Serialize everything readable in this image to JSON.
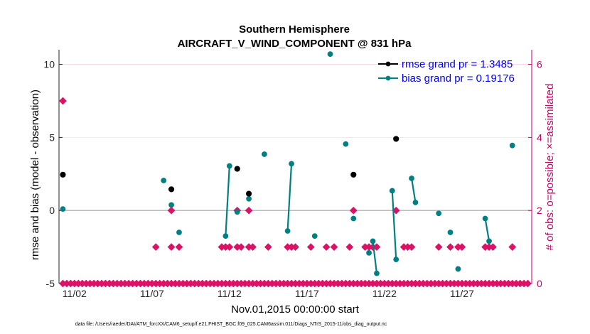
{
  "chart_data": {
    "type": "scatter",
    "title": "Southern Hemisphere",
    "subtitle": "AIRCRAFT_V_WIND_COMPONENT @ 831 hPa",
    "xlabel": "Nov.01,2015 00:00:00 start",
    "ylabel": "rmse and bias (model - observation)",
    "y2label": "# of obs: o=possible; ×=assimilated",
    "footer": "data file: /Users/raeder/DAI/ATM_forcXX/CAM6_setup/f.e21.FHIST_BGC.f09_025.CAM6assim.011/Diags_NTrS_2015-11/obs_diag_output.nc",
    "xlim": [
      0.5,
      31.0
    ],
    "ylim": [
      -5,
      11
    ],
    "y2lim": [
      0,
      6.4
    ],
    "x_ticks": [
      1.5,
      6.5,
      11.5,
      16.5,
      21.5,
      26.5
    ],
    "x_tick_labels": [
      "11/02",
      "11/07",
      "11/12",
      "11/17",
      "11/22",
      "11/27"
    ],
    "y_ticks": [
      -5,
      0,
      5,
      10
    ],
    "y_tick_labels": [
      "-5",
      "0",
      "5",
      "10"
    ],
    "y2_ticks": [
      0,
      2,
      4,
      6
    ],
    "y2_tick_labels": [
      "0",
      "2",
      "4",
      "6"
    ],
    "colors": {
      "rmse": "#000000",
      "bias": "#008080",
      "obs": "#dd1166",
      "zero_line": "#b3b3b3",
      "axis": "#262626",
      "right_axis": "#cc0066",
      "legend_text": "#0000ff"
    },
    "legend": [
      "rmse grand pr = 1.3485",
      "bias grand pr = 0.19176"
    ],
    "rmse": [
      {
        "x": 0.75,
        "y": 2.45
      },
      {
        "x": 7.75,
        "y": 1.45
      },
      {
        "x": 12.0,
        "y": 2.85
      },
      {
        "x": 12.75,
        "y": 1.15
      },
      {
        "x": 19.5,
        "y": 2.45
      },
      {
        "x": 22.25,
        "y": 4.9
      }
    ],
    "bias_segments": [
      [
        {
          "x": 0.75,
          "y": 0.1
        }
      ],
      [
        {
          "x": 7.25,
          "y": 2.05
        }
      ],
      [
        {
          "x": 7.75,
          "y": 0.38
        }
      ],
      [
        {
          "x": 8.25,
          "y": -1.5
        }
      ],
      [
        {
          "x": 11.25,
          "y": -1.75
        },
        {
          "x": 11.5,
          "y": 3.05
        }
      ],
      [
        {
          "x": 12.0,
          "y": -0.1
        }
      ],
      [
        {
          "x": 12.75,
          "y": 0.8
        }
      ],
      [
        {
          "x": 13.75,
          "y": 3.85
        }
      ],
      [
        {
          "x": 15.25,
          "y": -1.4
        },
        {
          "x": 15.5,
          "y": 3.2
        }
      ],
      [
        {
          "x": 17.0,
          "y": -1.75
        }
      ],
      [
        {
          "x": 18.0,
          "y": 10.7
        }
      ],
      [
        {
          "x": 19.0,
          "y": 4.55
        }
      ],
      [
        {
          "x": 19.5,
          "y": -0.55
        }
      ],
      [
        {
          "x": 20.5,
          "y": -2.9
        }
      ],
      [
        {
          "x": 20.75,
          "y": -2.1
        },
        {
          "x": 21.0,
          "y": -4.3
        }
      ],
      [
        {
          "x": 22.0,
          "y": 1.35
        },
        {
          "x": 22.25,
          "y": -3.35
        }
      ],
      [
        {
          "x": 23.25,
          "y": 2.2
        },
        {
          "x": 23.5,
          "y": 0.55
        }
      ],
      [
        {
          "x": 25.0,
          "y": -0.2
        }
      ],
      [
        {
          "x": 25.75,
          "y": -1.5
        }
      ],
      [
        {
          "x": 26.25,
          "y": -4.0
        }
      ],
      [
        {
          "x": 28.0,
          "y": -0.55
        },
        {
          "x": 28.25,
          "y": -2.1
        }
      ],
      [
        {
          "x": 29.75,
          "y": 4.45
        }
      ]
    ],
    "obs_count_1": [
      6.75,
      7.75,
      8.25,
      11.0,
      11.25,
      11.5,
      12.0,
      12.25,
      12.75,
      13.0,
      14.0,
      15.25,
      15.5,
      15.75,
      16.75,
      17.75,
      18.25,
      19.25,
      20.25,
      20.5,
      20.75,
      21.0,
      22.75,
      23.0,
      23.25,
      25.0,
      25.75,
      26.25,
      26.5,
      28.0,
      28.25,
      28.5,
      29.75
    ],
    "obs_count_2": [
      7.75,
      12.0,
      12.75,
      19.5,
      22.25
    ],
    "obs_count_5": [
      0.75
    ],
    "obs_count_0_start": 0.75,
    "obs_count_0_end": 30.75,
    "obs_count_0_step": 0.25
  }
}
